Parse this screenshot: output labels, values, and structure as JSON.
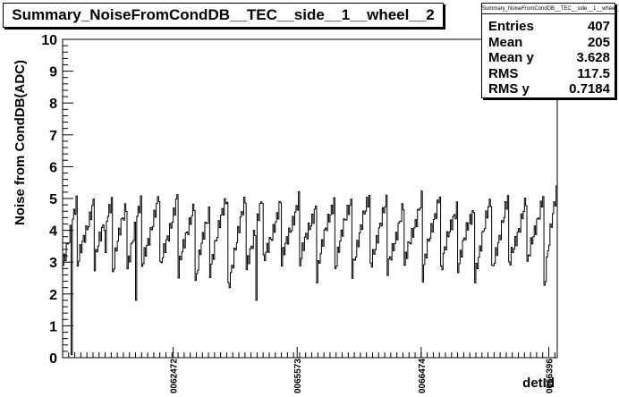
{
  "window": {
    "title": "Summary_NoiseFromCondDB__TEC__side__1__wheel__2"
  },
  "stats": {
    "title": "Summary_NoiseFromCondDB__TEC__side__1__wheel__2",
    "entries_label": "Entries",
    "entries_value": "407",
    "mean_label": "Mean",
    "mean_value": "205",
    "meany_label": "Mean y",
    "meany_value": "3.628",
    "rms_label": "RMS",
    "rms_value": "117.5",
    "rmsy_label": "RMS y",
    "rmsy_value": "0.7184"
  },
  "chart_data": {
    "type": "line",
    "title": "Summary_NoiseFromCondDB__TEC__side__1__wheel__2",
    "xlabel": "detId",
    "ylabel": "Noise from CondDB(ADC)",
    "ylim": [
      0,
      10
    ],
    "xlim": [
      0,
      407
    ],
    "yticks": [
      "0",
      "1",
      "2",
      "3",
      "4",
      "5",
      "6",
      "7",
      "8",
      "9",
      "10"
    ],
    "xtick_labels": [
      {
        "label": "0062472",
        "x": 91
      },
      {
        "label": "0065573",
        "x": 193
      },
      {
        "label": "0066474",
        "x": 295
      },
      {
        "label": "0066396",
        "x": 400
      }
    ],
    "grid": false,
    "series": [
      {
        "cycles": [
          {
            "start": 0,
            "len": 12,
            "from": 2.9,
            "to": 4.8,
            "spike": 0.1
          },
          {
            "start": 12,
            "len": 14,
            "from": 2.8,
            "to": 4.9
          },
          {
            "start": 26,
            "len": 15,
            "from": 2.9,
            "to": 5.0,
            "spike": 3.3
          },
          {
            "start": 41,
            "len": 12,
            "from": 2.7,
            "to": 4.8
          },
          {
            "start": 53,
            "len": 12,
            "from": 2.9,
            "to": 4.8,
            "spike": 1.8
          },
          {
            "start": 65,
            "len": 15,
            "from": 2.8,
            "to": 5.0
          },
          {
            "start": 80,
            "len": 15,
            "from": 2.7,
            "to": 5.0
          },
          {
            "start": 95,
            "len": 14,
            "from": 2.6,
            "to": 4.9
          },
          {
            "start": 109,
            "len": 12,
            "from": 2.3,
            "to": 4.6
          },
          {
            "start": 121,
            "len": 15,
            "from": 2.8,
            "to": 5.0
          },
          {
            "start": 136,
            "len": 15,
            "from": 2.2,
            "to": 4.9
          },
          {
            "start": 151,
            "len": 14,
            "from": 2.8,
            "to": 4.9,
            "spike": 1.8
          },
          {
            "start": 165,
            "len": 15,
            "from": 2.9,
            "to": 4.8
          },
          {
            "start": 180,
            "len": 15,
            "from": 2.9,
            "to": 5.0
          },
          {
            "start": 195,
            "len": 14,
            "from": 2.9,
            "to": 4.8
          },
          {
            "start": 209,
            "len": 15,
            "from": 2.6,
            "to": 5.0
          },
          {
            "start": 224,
            "len": 14,
            "from": 2.9,
            "to": 4.9
          },
          {
            "start": 238,
            "len": 15,
            "from": 2.8,
            "to": 5.0
          },
          {
            "start": 253,
            "len": 14,
            "from": 2.9,
            "to": 4.8
          },
          {
            "start": 267,
            "len": 14,
            "from": 2.7,
            "to": 4.7
          },
          {
            "start": 281,
            "len": 15,
            "from": 2.8,
            "to": 5.0
          },
          {
            "start": 296,
            "len": 15,
            "from": 2.5,
            "to": 5.2
          },
          {
            "start": 311,
            "len": 14,
            "from": 2.7,
            "to": 4.8
          },
          {
            "start": 325,
            "len": 14,
            "from": 2.9,
            "to": 4.6
          },
          {
            "start": 339,
            "len": 14,
            "from": 2.6,
            "to": 4.9
          },
          {
            "start": 353,
            "len": 14,
            "from": 2.7,
            "to": 4.9
          },
          {
            "start": 367,
            "len": 15,
            "from": 2.8,
            "to": 4.9
          },
          {
            "start": 382,
            "len": 14,
            "from": 2.8,
            "to": 5.1
          },
          {
            "start": 396,
            "len": 11,
            "from": 2.1,
            "to": 5.3
          }
        ]
      }
    ]
  }
}
